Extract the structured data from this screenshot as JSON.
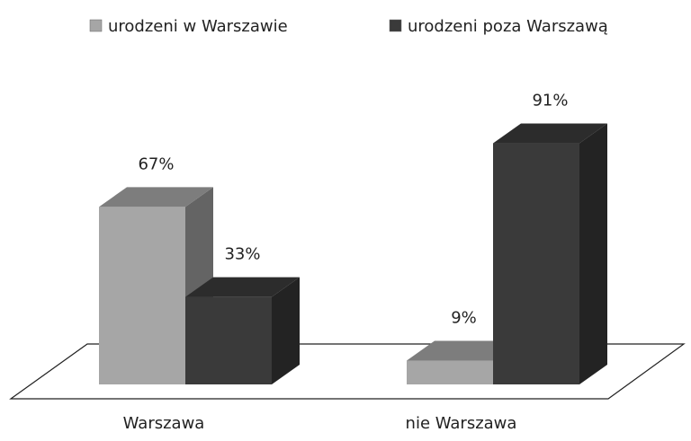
{
  "chart_data": {
    "type": "bar3d",
    "categories": [
      "Warszawa",
      "nie Warszawa"
    ],
    "series": [
      {
        "name": "urodzeni w Warszawie",
        "color": "#a6a6a6",
        "values": [
          67,
          9
        ],
        "value_labels": [
          "67%",
          "9%"
        ]
      },
      {
        "name": "urodzeni poza Warszawą",
        "color": "#3a3a3a",
        "values": [
          33,
          91
        ],
        "value_labels": [
          "33%",
          "91%"
        ]
      }
    ],
    "legend": "top"
  }
}
